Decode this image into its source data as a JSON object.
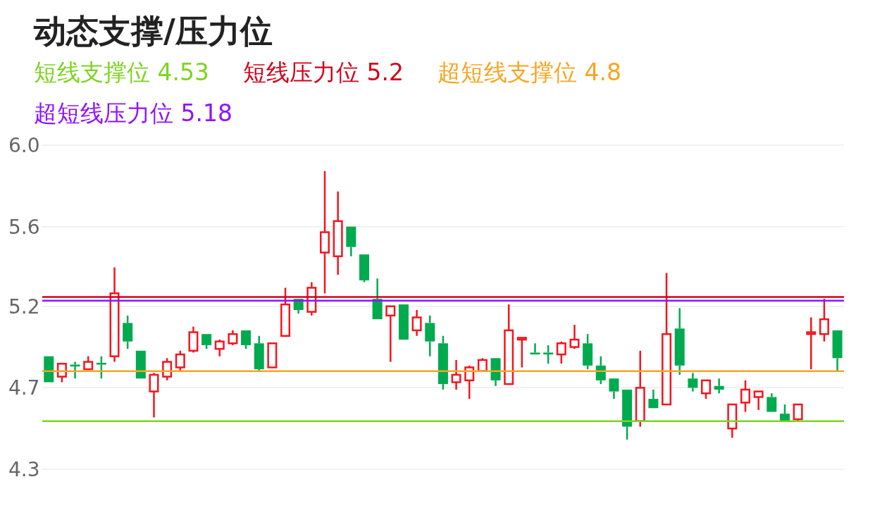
{
  "chart_data": {
    "type": "candlestick",
    "title": "动态支撑/压力位",
    "categories": [
      null,
      null,
      null,
      null,
      null,
      null,
      null,
      null,
      null,
      null,
      null,
      null,
      null,
      null,
      null,
      null,
      null,
      null,
      null,
      null,
      null,
      null,
      null,
      null,
      null,
      null,
      null,
      null,
      null,
      null,
      null,
      null,
      null,
      null,
      null,
      null,
      null,
      null,
      null,
      null,
      null,
      null,
      null,
      null,
      null,
      null,
      null,
      null,
      null,
      null,
      null,
      null,
      null,
      null,
      null,
      null,
      null,
      null,
      null,
      null,
      null
    ],
    "ohlc": [
      [
        4.88,
        4.88,
        4.74,
        4.74
      ],
      [
        4.77,
        4.84,
        4.74,
        4.84
      ],
      [
        4.835,
        4.85,
        4.76,
        4.825
      ],
      [
        4.81,
        4.88,
        4.81,
        4.85
      ],
      [
        4.845,
        4.88,
        4.76,
        4.835
      ],
      [
        4.88,
        5.36,
        4.85,
        5.22
      ],
      [
        5.06,
        5.1,
        4.92,
        4.96
      ],
      [
        4.91,
        4.91,
        4.76,
        4.76
      ],
      [
        4.69,
        4.79,
        4.55,
        4.78
      ],
      [
        4.77,
        4.87,
        4.75,
        4.85
      ],
      [
        4.82,
        4.91,
        4.8,
        4.89
      ],
      [
        4.91,
        5.04,
        4.9,
        5.01
      ],
      [
        5.0,
        5.0,
        4.92,
        4.94
      ],
      [
        4.92,
        4.97,
        4.88,
        4.96
      ],
      [
        4.95,
        5.02,
        4.94,
        5.0
      ],
      [
        5.02,
        5.02,
        4.92,
        4.94
      ],
      [
        4.95,
        4.99,
        4.8,
        4.81
      ],
      [
        4.82,
        4.95,
        4.82,
        4.95
      ],
      [
        4.99,
        5.25,
        4.99,
        5.16
      ],
      [
        5.19,
        5.19,
        5.11,
        5.13
      ],
      [
        5.12,
        5.28,
        5.1,
        5.25
      ],
      [
        5.44,
        5.88,
        5.22,
        5.55
      ],
      [
        5.42,
        5.77,
        5.32,
        5.61
      ],
      [
        5.58,
        5.58,
        5.42,
        5.47
      ],
      [
        5.43,
        5.43,
        5.28,
        5.29
      ],
      [
        5.19,
        5.3,
        5.08,
        5.08
      ],
      [
        5.1,
        5.15,
        4.85,
        5.15
      ],
      [
        5.16,
        5.16,
        4.97,
        4.97
      ],
      [
        5.02,
        5.13,
        4.99,
        5.09
      ],
      [
        5.06,
        5.1,
        4.88,
        4.96
      ],
      [
        4.95,
        4.99,
        4.7,
        4.73
      ],
      [
        4.74,
        4.86,
        4.7,
        4.78
      ],
      [
        4.75,
        4.83,
        4.65,
        4.82
      ],
      [
        4.8,
        4.87,
        4.8,
        4.86
      ],
      [
        4.87,
        4.87,
        4.72,
        4.75
      ],
      [
        4.73,
        5.16,
        4.73,
        5.02
      ],
      [
        4.97,
        4.98,
        4.82,
        4.98
      ],
      [
        4.9,
        4.95,
        4.89,
        4.89
      ],
      [
        4.9,
        4.94,
        4.84,
        4.89
      ],
      [
        4.89,
        4.96,
        4.84,
        4.95
      ],
      [
        4.93,
        5.05,
        4.92,
        4.97
      ],
      [
        4.95,
        5.0,
        4.81,
        4.83
      ],
      [
        4.83,
        4.88,
        4.73,
        4.75
      ],
      [
        4.76,
        4.76,
        4.65,
        4.69
      ],
      [
        4.7,
        4.7,
        4.43,
        4.5
      ],
      [
        4.53,
        4.91,
        4.5,
        4.71
      ],
      [
        4.65,
        4.7,
        4.6,
        4.6
      ],
      [
        4.62,
        5.33,
        4.62,
        5.0
      ],
      [
        5.03,
        5.14,
        4.78,
        4.83
      ],
      [
        4.76,
        4.79,
        4.69,
        4.71
      ],
      [
        4.68,
        4.75,
        4.65,
        4.75
      ],
      [
        4.72,
        4.76,
        4.68,
        4.7
      ],
      [
        4.49,
        4.62,
        4.44,
        4.62
      ],
      [
        4.63,
        4.75,
        4.58,
        4.7
      ],
      [
        4.66,
        4.69,
        4.59,
        4.69
      ],
      [
        4.66,
        4.68,
        4.58,
        4.58
      ],
      [
        4.57,
        4.62,
        4.53,
        4.53
      ],
      [
        4.54,
        4.62,
        4.53,
        4.62
      ],
      [
        5.0,
        5.09,
        4.81,
        5.01
      ],
      [
        5.0,
        5.19,
        4.96,
        5.08
      ],
      [
        5.02,
        5.02,
        4.8,
        4.87
      ]
    ],
    "colors": [
      "#00aa4f",
      "#f5141e",
      "#00aa4f",
      "#f5141e",
      "#00aa4f",
      "#f5141e",
      "#00aa4f",
      "#00aa4f",
      "#f5141e",
      "#f5141e",
      "#f5141e",
      "#f5141e",
      "#00aa4f",
      "#f5141e",
      "#f5141e",
      "#00aa4f",
      "#00aa4f",
      "#f5141e",
      "#f5141e",
      "#00aa4f",
      "#f5141e",
      "#f5141e",
      "#f5141e",
      "#00aa4f",
      "#00aa4f",
      "#00aa4f",
      "#f5141e",
      "#00aa4f",
      "#f5141e",
      "#00aa4f",
      "#00aa4f",
      "#f5141e",
      "#f5141e",
      "#f5141e",
      "#00aa4f",
      "#f5141e",
      "#f5141e",
      "#00aa4f",
      "#00aa4f",
      "#f5141e",
      "#f5141e",
      "#00aa4f",
      "#00aa4f",
      "#00aa4f",
      "#00aa4f",
      "#f5141e",
      "#00aa4f",
      "#f5141e",
      "#00aa4f",
      "#00aa4f",
      "#f5141e",
      "#00aa4f",
      "#f5141e",
      "#f5141e",
      "#f5141e",
      "#00aa4f",
      "#00aa4f",
      "#f5141e",
      "#f5141e",
      "#f5141e",
      "#00aa4f"
    ],
    "ylim": [
      4.27,
      6.02
    ],
    "yticks": [
      {
        "value": 6.02,
        "label": "6.0"
      },
      {
        "value": 5.58,
        "label": "5.6"
      },
      {
        "value": 5.15,
        "label": "5.2"
      },
      {
        "value": 4.71,
        "label": "4.7"
      },
      {
        "value": 4.27,
        "label": "4.3"
      }
    ],
    "grid": "y",
    "tick_labels": "y",
    "legend": "top left",
    "ref_lines": [
      {
        "axis": "y",
        "value": 4.53,
        "label": "短线支撑位 4.53",
        "color": "#7ed321"
      },
      {
        "axis": "y",
        "value": 5.2,
        "label": "短线压力位 5.2",
        "color": "#d0021b"
      },
      {
        "axis": "y",
        "value": 4.8,
        "label": "超短线支撑位 4.8",
        "color": "#f5a623"
      },
      {
        "axis": "y",
        "value": 5.18,
        "label": "超短线压力位 5.18",
        "color": "#9013fe"
      }
    ]
  }
}
